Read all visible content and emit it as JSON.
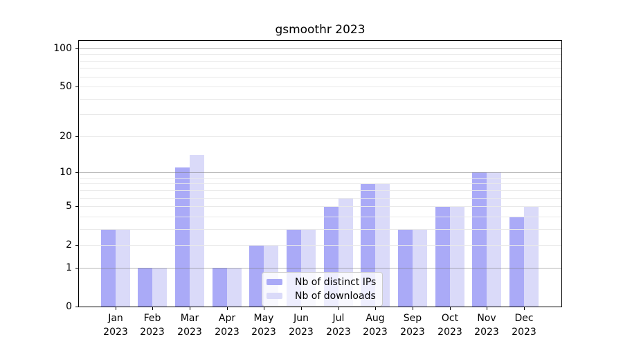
{
  "chart_data": {
    "type": "bar",
    "title": "gsmoothr 2023",
    "year": "2023",
    "categories": [
      "Jan",
      "Feb",
      "Mar",
      "Apr",
      "May",
      "Jun",
      "Jul",
      "Aug",
      "Sep",
      "Oct",
      "Nov",
      "Dec"
    ],
    "series": [
      {
        "name": "Nb of distinct IPs",
        "color": "#aaaaf7",
        "values": [
          3,
          1,
          11,
          1,
          2,
          3,
          5,
          8,
          3,
          5,
          10,
          4
        ]
      },
      {
        "name": "Nb of downloads",
        "color": "#dadaf9",
        "values": [
          3,
          1,
          14,
          1,
          2,
          3,
          6,
          8,
          3,
          5,
          10,
          5
        ]
      }
    ],
    "yscale": "log1p",
    "ylim": [
      0,
      115
    ],
    "yticks": [
      0,
      1,
      2,
      5,
      10,
      20,
      50,
      100
    ],
    "ytick_labels": [
      "0",
      "1",
      "2",
      "5",
      "10",
      "20",
      "50",
      "100"
    ],
    "major_gridlines": [
      1,
      10,
      100
    ],
    "minor_gridlines": [
      2,
      3,
      4,
      5,
      6,
      7,
      8,
      9,
      20,
      30,
      40,
      50,
      60,
      70,
      80,
      90
    ],
    "grid": true,
    "legend_position": "lower center",
    "colors": {
      "spine": "#000000",
      "minor_grid": "#e9e9e9",
      "major_grid": "#787878",
      "background": "#ffffff",
      "text": "#000000"
    }
  }
}
